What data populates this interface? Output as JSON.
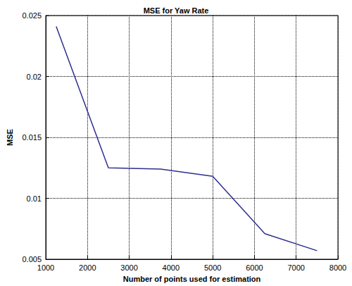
{
  "chart_data": {
    "type": "line",
    "title": "MSE for Yaw Rate",
    "x_label": "Number of points used for estimation",
    "y_label": "MSE",
    "x": [
      1250,
      2500,
      3750,
      5000,
      6250,
      7500
    ],
    "values": [
      0.0241,
      0.0125,
      0.0124,
      0.0118,
      0.0071,
      0.0057
    ],
    "color": "#2e2e8f",
    "xlim": [
      1000,
      8000
    ],
    "xticks": [
      1000,
      2000,
      3000,
      4000,
      5000,
      6000,
      7000,
      8000
    ],
    "ylim": [
      0.005,
      0.025
    ],
    "yticks": [
      0.005,
      0.01,
      0.015,
      0.02,
      0.025
    ],
    "grid": true
  }
}
